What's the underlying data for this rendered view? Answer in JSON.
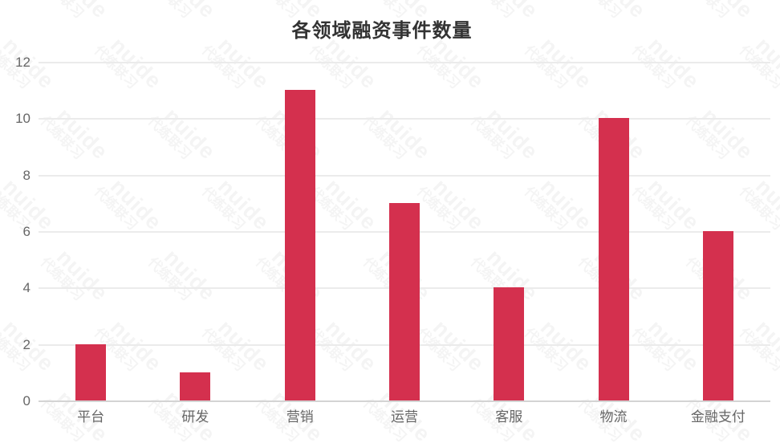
{
  "watermark": {
    "line1": "nuide",
    "line2": "代练联习"
  },
  "chart_data": {
    "type": "bar",
    "title": "各领域融资事件数量",
    "categories": [
      "平台",
      "研发",
      "营销",
      "运营",
      "客服",
      "物流",
      "金融支付"
    ],
    "values": [
      2,
      1,
      11,
      7,
      4,
      10,
      6
    ],
    "xlabel": "",
    "ylabel": "",
    "ylim": [
      0,
      12
    ],
    "yticks": [
      0,
      2,
      4,
      6,
      8,
      10,
      12
    ],
    "grid": true,
    "legend_position": "none",
    "bar_color": "#D4304E",
    "grid_color": "#EBEBEB",
    "axis_line_color": "#D4D4D4",
    "tick_label_color": "#666666",
    "title_color": "#333333"
  }
}
